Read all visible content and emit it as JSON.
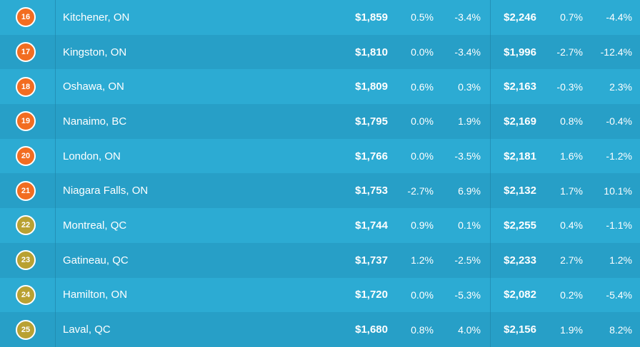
{
  "colors": {
    "rank_orange": "#f26d21",
    "rank_olive": "#b9a132",
    "row_light": "#2cabd3",
    "row_dark": "#279fc7"
  },
  "rows": [
    {
      "rank": "16",
      "city": "Kitchener, ON",
      "rent1": "$1,859",
      "m1": "0.5%",
      "y1": "-3.4%",
      "rent2": "$2,246",
      "m2": "0.7%",
      "y2": "-4.4%",
      "badge": "orange"
    },
    {
      "rank": "17",
      "city": "Kingston, ON",
      "rent1": "$1,810",
      "m1": "0.0%",
      "y1": "-3.4%",
      "rent2": "$1,996",
      "m2": "-2.7%",
      "y2": "-12.4%",
      "badge": "orange"
    },
    {
      "rank": "18",
      "city": "Oshawa, ON",
      "rent1": "$1,809",
      "m1": "0.6%",
      "y1": "0.3%",
      "rent2": "$2,163",
      "m2": "-0.3%",
      "y2": "2.3%",
      "badge": "orange"
    },
    {
      "rank": "19",
      "city": "Nanaimo, BC",
      "rent1": "$1,795",
      "m1": "0.0%",
      "y1": "1.9%",
      "rent2": "$2,169",
      "m2": "0.8%",
      "y2": "-0.4%",
      "badge": "orange"
    },
    {
      "rank": "20",
      "city": "London, ON",
      "rent1": "$1,766",
      "m1": "0.0%",
      "y1": "-3.5%",
      "rent2": "$2,181",
      "m2": "1.6%",
      "y2": "-1.2%",
      "badge": "orange"
    },
    {
      "rank": "21",
      "city": "Niagara Falls, ON",
      "rent1": "$1,753",
      "m1": "-2.7%",
      "y1": "6.9%",
      "rent2": "$2,132",
      "m2": "1.7%",
      "y2": "10.1%",
      "badge": "orange"
    },
    {
      "rank": "22",
      "city": "Montreal, QC",
      "rent1": "$1,744",
      "m1": "0.9%",
      "y1": "0.1%",
      "rent2": "$2,255",
      "m2": "0.4%",
      "y2": "-1.1%",
      "badge": "olive"
    },
    {
      "rank": "23",
      "city": "Gatineau, QC",
      "rent1": "$1,737",
      "m1": "1.2%",
      "y1": "-2.5%",
      "rent2": "$2,233",
      "m2": "2.7%",
      "y2": "1.2%",
      "badge": "olive"
    },
    {
      "rank": "24",
      "city": "Hamilton, ON",
      "rent1": "$1,720",
      "m1": "0.0%",
      "y1": "-5.3%",
      "rent2": "$2,082",
      "m2": "0.2%",
      "y2": "-5.4%",
      "badge": "olive"
    },
    {
      "rank": "25",
      "city": "Laval, QC",
      "rent1": "$1,680",
      "m1": "0.8%",
      "y1": "4.0%",
      "rent2": "$2,156",
      "m2": "1.9%",
      "y2": "8.2%",
      "badge": "olive"
    }
  ]
}
